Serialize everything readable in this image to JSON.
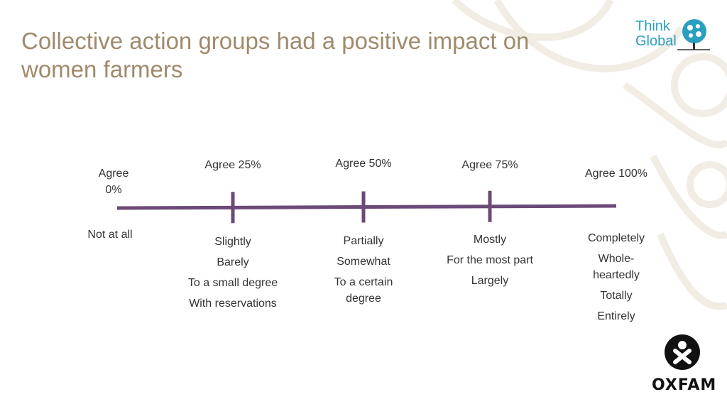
{
  "title": "Collective action groups had a positive impact on women farmers",
  "logo": {
    "line1": "Think",
    "line2": "Global",
    "brand": "OXFAM"
  },
  "colors": {
    "line": "#6b4a78",
    "title": "#a08a6c",
    "logo_blue": "#2a9fbf"
  },
  "points": [
    {
      "label": "Agree\n0%",
      "value": 0,
      "synonyms": [
        "Not at all"
      ]
    },
    {
      "label": "Agree 25%",
      "value": 25,
      "synonyms": [
        "Slightly",
        "Barely",
        "To a small degree",
        "With reservations"
      ]
    },
    {
      "label": "Agree 50%",
      "value": 50,
      "synonyms": [
        "Partially",
        "Somewhat",
        "To a certain\ndegree"
      ]
    },
    {
      "label": "Agree 75%",
      "value": 75,
      "synonyms": [
        "Mostly",
        "For the most part",
        "Largely"
      ]
    },
    {
      "label": "Agree 100%",
      "value": 100,
      "synonyms": [
        "Completely",
        "Whole-\nheartedly",
        "Totally",
        "Entirely"
      ]
    }
  ]
}
